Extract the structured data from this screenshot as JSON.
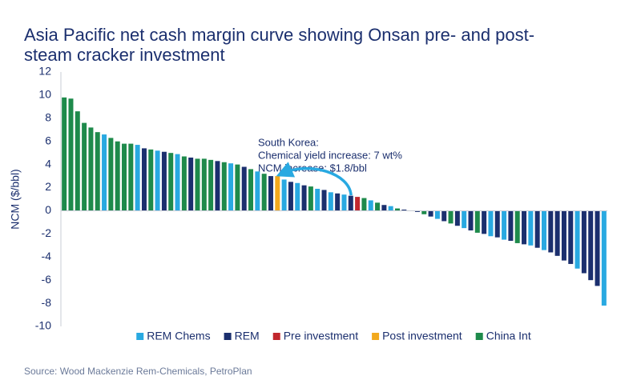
{
  "chart_data": {
    "type": "bar",
    "title": [
      "Asia Pacific net cash margin curve showing Onsan pre- and post-",
      "steam cracker investment"
    ],
    "y_label": "NCM ($/bbl)",
    "ylim": [
      -10,
      12
    ],
    "yticks": [
      -10,
      -8,
      -6,
      -4,
      -2,
      0,
      2,
      4,
      6,
      8,
      10,
      12
    ],
    "annotation": [
      "South Korea:",
      "Chemical yield increase: 7 wt%",
      "NCM increase: $1.8/bbl"
    ],
    "source": "Source: Wood Mackenzie Rem-Chemicals, PetroPlan",
    "legend": "bottom",
    "series": [
      {
        "name": "REM Chems",
        "color": "#29a9e1",
        "values": [
          null,
          null,
          null,
          null,
          null,
          null,
          6.6,
          null,
          null,
          null,
          null,
          5.7,
          null,
          null,
          5.2,
          null,
          null,
          4.9,
          null,
          null,
          null,
          null,
          null,
          null,
          null,
          4.1,
          null,
          null,
          null,
          3.4,
          null,
          null,
          null,
          2.7,
          null,
          2.4,
          null,
          null,
          1.9,
          null,
          1.6,
          null,
          1.4,
          null,
          null,
          null,
          0.9,
          null,
          null,
          0.4,
          null,
          null,
          0.0,
          null,
          null,
          null,
          -0.7,
          null,
          null,
          null,
          -1.5,
          null,
          null,
          null,
          -2.2,
          null,
          -2.5,
          null,
          null,
          null,
          -3.0,
          null,
          -3.4,
          null,
          null,
          null,
          null,
          -5.0,
          null,
          null,
          null,
          -8.2
        ]
      },
      {
        "name": "REM",
        "color": "#1b2f6e",
        "values": [
          null,
          null,
          null,
          null,
          null,
          null,
          null,
          null,
          null,
          null,
          null,
          null,
          5.4,
          null,
          null,
          5.1,
          null,
          null,
          null,
          4.6,
          null,
          null,
          null,
          4.3,
          null,
          null,
          null,
          3.8,
          null,
          null,
          null,
          3.0,
          null,
          null,
          2.5,
          null,
          2.2,
          null,
          null,
          1.8,
          null,
          1.5,
          null,
          1.3,
          null,
          null,
          null,
          null,
          0.5,
          null,
          null,
          0.1,
          null,
          -0.1,
          null,
          -0.5,
          null,
          -0.9,
          null,
          -1.3,
          null,
          -1.7,
          null,
          -2.0,
          null,
          -2.3,
          null,
          -2.6,
          null,
          -2.9,
          null,
          -3.2,
          null,
          -3.6,
          -3.9,
          -4.3,
          -4.6,
          null,
          -5.4,
          -6.0,
          -6.5,
          null
        ]
      },
      {
        "name": "Pre investment",
        "color": "#c1272d",
        "values": [
          null,
          null,
          null,
          null,
          null,
          null,
          null,
          null,
          null,
          null,
          null,
          null,
          null,
          null,
          null,
          null,
          null,
          null,
          null,
          null,
          null,
          null,
          null,
          null,
          null,
          null,
          null,
          null,
          null,
          null,
          null,
          null,
          null,
          null,
          null,
          null,
          null,
          null,
          null,
          null,
          null,
          null,
          null,
          null,
          1.2,
          null,
          null,
          null,
          null,
          null,
          null,
          null,
          null,
          null,
          null,
          null,
          null,
          null,
          null,
          null,
          null,
          null,
          null,
          null,
          null,
          null,
          null,
          null,
          null,
          null,
          null,
          null,
          null,
          null,
          null,
          null,
          null,
          null,
          null,
          null,
          null,
          null
        ]
      },
      {
        "name": "Post investment",
        "color": "#f2a91d",
        "values": [
          null,
          null,
          null,
          null,
          null,
          null,
          null,
          null,
          null,
          null,
          null,
          null,
          null,
          null,
          null,
          null,
          null,
          null,
          null,
          null,
          null,
          null,
          null,
          null,
          null,
          null,
          null,
          null,
          null,
          null,
          null,
          null,
          3.0,
          null,
          null,
          null,
          null,
          null,
          null,
          null,
          null,
          null,
          null,
          null,
          null,
          null,
          null,
          null,
          null,
          null,
          null,
          null,
          null,
          null,
          null,
          null,
          null,
          null,
          null,
          null,
          null,
          null,
          null,
          null,
          null,
          null,
          null,
          null,
          null,
          null,
          null,
          null,
          null,
          null,
          null,
          null,
          null,
          null,
          null,
          null,
          null,
          null
        ]
      },
      {
        "name": "China Int",
        "color": "#1e8a4b",
        "values": [
          9.8,
          9.7,
          8.6,
          7.6,
          7.2,
          6.8,
          null,
          6.3,
          6.0,
          5.8,
          5.8,
          null,
          null,
          5.3,
          null,
          null,
          5.0,
          null,
          4.7,
          null,
          4.5,
          4.5,
          4.4,
          null,
          4.2,
          null,
          4.0,
          null,
          3.6,
          null,
          3.2,
          null,
          null,
          null,
          null,
          null,
          null,
          2.1,
          null,
          null,
          null,
          null,
          null,
          null,
          null,
          1.1,
          null,
          0.7,
          null,
          null,
          0.2,
          null,
          null,
          null,
          -0.3,
          null,
          null,
          null,
          -1.1,
          null,
          null,
          null,
          -1.9,
          null,
          null,
          null,
          null,
          null,
          -2.8,
          null,
          null,
          null,
          null,
          null,
          null,
          null,
          null,
          null,
          null,
          null,
          null,
          null
        ]
      }
    ]
  }
}
